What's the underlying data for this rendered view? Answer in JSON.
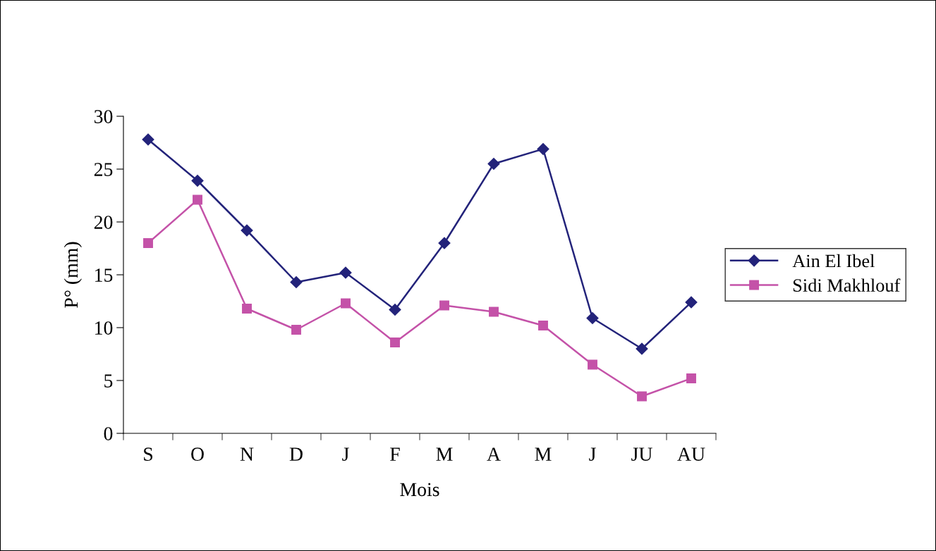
{
  "chart_data": {
    "type": "line",
    "xlabel": "Mois",
    "ylabel": "P° (mm)",
    "categories": [
      "S",
      "O",
      "N",
      "D",
      "J",
      "F",
      "M",
      "A",
      "M",
      "J",
      "JU",
      "AU"
    ],
    "series": [
      {
        "name": "Ain El Ibel",
        "color": "#23237a",
        "marker": "diamond",
        "values": [
          27.8,
          23.9,
          19.2,
          14.3,
          15.2,
          11.7,
          18,
          25.5,
          26.9,
          10.9,
          8,
          12.4
        ]
      },
      {
        "name": "Sidi Makhlouf",
        "color": "#c452a8",
        "marker": "square",
        "values": [
          18,
          22.1,
          11.8,
          9.8,
          12.3,
          8.6,
          12.1,
          11.5,
          10.2,
          6.5,
          3.5,
          5.2
        ]
      }
    ],
    "ylim": [
      0,
      30
    ],
    "yticks": [
      0,
      5,
      10,
      15,
      20,
      25,
      30
    ],
    "grid": false,
    "legend": "right",
    "line_style": "solid"
  }
}
